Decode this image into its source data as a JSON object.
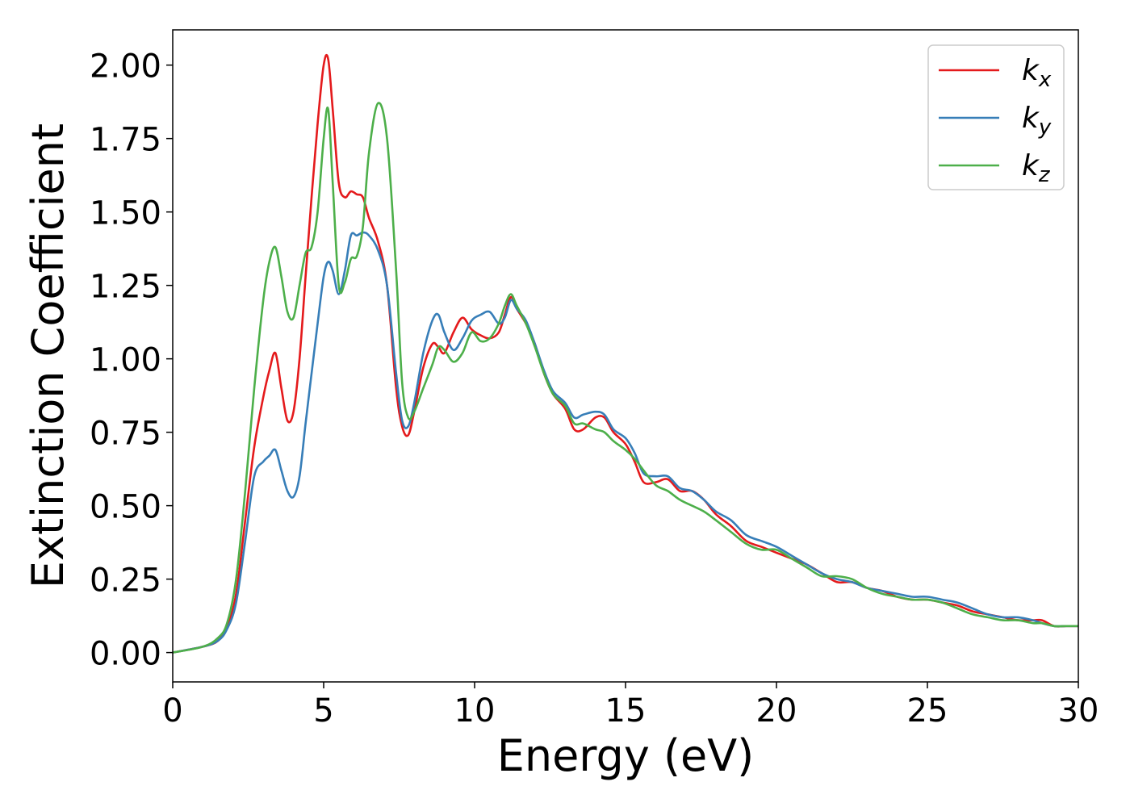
{
  "chart_data": {
    "type": "line",
    "title": "",
    "xlabel": "Energy (eV)",
    "ylabel": "Extinction Coefficient",
    "xlim": [
      0,
      30
    ],
    "ylim": [
      -0.1,
      2.12
    ],
    "xticks": [
      0,
      5,
      10,
      15,
      20,
      25,
      30
    ],
    "xtick_labels": [
      "0",
      "5",
      "10",
      "15",
      "20",
      "25",
      "30"
    ],
    "yticks": [
      0.0,
      0.25,
      0.5,
      0.75,
      1.0,
      1.25,
      1.5,
      1.75,
      2.0
    ],
    "ytick_labels": [
      "0.00",
      "0.25",
      "0.50",
      "0.75",
      "1.00",
      "1.25",
      "1.50",
      "1.75",
      "2.00"
    ],
    "grid": false,
    "legend_position": "top-right",
    "series": [
      {
        "name": "k_x",
        "legend_base": "k",
        "legend_sub": "x",
        "color": "#e41a1c",
        "x": [
          0,
          1,
          1.5,
          1.8,
          2.1,
          2.4,
          2.7,
          3.0,
          3.2,
          3.4,
          3.6,
          3.8,
          4.0,
          4.2,
          4.4,
          4.6,
          4.8,
          5.0,
          5.15,
          5.3,
          5.5,
          5.7,
          5.9,
          6.1,
          6.3,
          6.5,
          6.8,
          7.1,
          7.4,
          7.6,
          7.8,
          8.0,
          8.3,
          8.6,
          8.8,
          9.0,
          9.3,
          9.6,
          9.9,
          10.2,
          10.5,
          10.8,
          11.0,
          11.2,
          11.4,
          11.7,
          12.0,
          12.3,
          12.6,
          13.0,
          13.3,
          13.6,
          14.0,
          14.3,
          14.6,
          15.0,
          15.3,
          15.6,
          16.0,
          16.4,
          16.8,
          17.2,
          17.6,
          18.0,
          18.5,
          19.0,
          19.5,
          20.0,
          20.5,
          21.0,
          21.5,
          22.0,
          22.5,
          23.0,
          23.5,
          24.0,
          24.5,
          25.0,
          25.5,
          26.0,
          26.5,
          27.0,
          27.5,
          28.0,
          28.5,
          28.8,
          29.2,
          29.6,
          30.0
        ],
        "y": [
          0.0,
          0.02,
          0.04,
          0.09,
          0.2,
          0.45,
          0.7,
          0.87,
          0.96,
          1.02,
          0.9,
          0.79,
          0.82,
          1.0,
          1.28,
          1.55,
          1.8,
          2.0,
          2.02,
          1.85,
          1.6,
          1.55,
          1.57,
          1.56,
          1.55,
          1.48,
          1.4,
          1.25,
          0.9,
          0.77,
          0.74,
          0.82,
          0.97,
          1.05,
          1.04,
          1.02,
          1.09,
          1.14,
          1.1,
          1.08,
          1.07,
          1.09,
          1.15,
          1.21,
          1.17,
          1.12,
          1.05,
          0.95,
          0.88,
          0.83,
          0.76,
          0.76,
          0.8,
          0.8,
          0.75,
          0.71,
          0.65,
          0.58,
          0.58,
          0.59,
          0.55,
          0.55,
          0.52,
          0.47,
          0.43,
          0.38,
          0.36,
          0.34,
          0.32,
          0.3,
          0.27,
          0.24,
          0.24,
          0.22,
          0.21,
          0.19,
          0.18,
          0.18,
          0.17,
          0.16,
          0.14,
          0.13,
          0.12,
          0.11,
          0.11,
          0.11,
          0.09,
          0.09,
          0.09
        ]
      },
      {
        "name": "k_y",
        "legend_base": "k",
        "legend_sub": "y",
        "color": "#377eb8",
        "x": [
          0,
          1,
          1.5,
          1.8,
          2.1,
          2.4,
          2.7,
          3.0,
          3.2,
          3.4,
          3.6,
          3.8,
          4.0,
          4.2,
          4.4,
          4.6,
          4.8,
          5.0,
          5.15,
          5.3,
          5.5,
          5.7,
          5.9,
          6.1,
          6.3,
          6.5,
          6.8,
          7.1,
          7.4,
          7.6,
          7.8,
          8.0,
          8.3,
          8.6,
          8.8,
          9.0,
          9.3,
          9.6,
          9.9,
          10.2,
          10.5,
          10.8,
          11.0,
          11.2,
          11.4,
          11.7,
          12.0,
          12.3,
          12.6,
          13.0,
          13.3,
          13.6,
          14.0,
          14.3,
          14.6,
          15.0,
          15.3,
          15.6,
          16.0,
          16.4,
          16.8,
          17.2,
          17.6,
          18.0,
          18.5,
          19.0,
          19.5,
          20.0,
          20.5,
          21.0,
          21.5,
          22.0,
          22.5,
          23.0,
          23.5,
          24.0,
          24.5,
          25.0,
          25.5,
          26.0,
          26.5,
          27.0,
          27.5,
          28.0,
          28.5,
          28.8,
          29.2,
          29.6,
          30.0
        ],
        "y": [
          0.0,
          0.02,
          0.04,
          0.08,
          0.17,
          0.38,
          0.6,
          0.65,
          0.67,
          0.69,
          0.62,
          0.55,
          0.53,
          0.6,
          0.78,
          0.95,
          1.12,
          1.28,
          1.33,
          1.3,
          1.22,
          1.3,
          1.42,
          1.42,
          1.43,
          1.42,
          1.37,
          1.25,
          0.95,
          0.79,
          0.77,
          0.85,
          1.02,
          1.13,
          1.15,
          1.09,
          1.03,
          1.07,
          1.13,
          1.15,
          1.16,
          1.12,
          1.14,
          1.2,
          1.17,
          1.13,
          1.05,
          0.96,
          0.89,
          0.85,
          0.8,
          0.81,
          0.82,
          0.81,
          0.76,
          0.73,
          0.68,
          0.61,
          0.6,
          0.6,
          0.56,
          0.55,
          0.52,
          0.48,
          0.45,
          0.4,
          0.38,
          0.36,
          0.33,
          0.3,
          0.27,
          0.25,
          0.24,
          0.22,
          0.21,
          0.2,
          0.19,
          0.19,
          0.18,
          0.17,
          0.15,
          0.13,
          0.12,
          0.12,
          0.11,
          0.1,
          0.09,
          0.09,
          0.09
        ]
      },
      {
        "name": "k_z",
        "legend_base": "k",
        "legend_sub": "z",
        "color": "#4daf4a",
        "x": [
          0,
          1,
          1.5,
          1.8,
          2.1,
          2.4,
          2.7,
          3.0,
          3.2,
          3.4,
          3.6,
          3.8,
          4.0,
          4.2,
          4.4,
          4.6,
          4.8,
          5.0,
          5.15,
          5.3,
          5.5,
          5.7,
          5.9,
          6.1,
          6.3,
          6.5,
          6.8,
          7.1,
          7.4,
          7.6,
          7.8,
          8.0,
          8.3,
          8.6,
          8.8,
          9.0,
          9.3,
          9.6,
          9.9,
          10.2,
          10.5,
          10.8,
          11.0,
          11.2,
          11.4,
          11.7,
          12.0,
          12.3,
          12.6,
          13.0,
          13.3,
          13.6,
          14.0,
          14.3,
          14.6,
          15.0,
          15.3,
          15.6,
          16.0,
          16.4,
          16.8,
          17.2,
          17.6,
          18.0,
          18.5,
          19.0,
          19.5,
          20.0,
          20.5,
          21.0,
          21.5,
          22.0,
          22.5,
          23.0,
          23.5,
          24.0,
          24.5,
          25.0,
          25.5,
          26.0,
          26.5,
          27.0,
          27.5,
          28.0,
          28.5,
          28.8,
          29.2,
          29.6,
          30.0
        ],
        "y": [
          0.0,
          0.02,
          0.05,
          0.1,
          0.25,
          0.55,
          0.9,
          1.2,
          1.33,
          1.38,
          1.28,
          1.16,
          1.14,
          1.25,
          1.36,
          1.38,
          1.5,
          1.75,
          1.85,
          1.6,
          1.25,
          1.26,
          1.34,
          1.35,
          1.45,
          1.7,
          1.87,
          1.75,
          1.3,
          0.92,
          0.8,
          0.82,
          0.9,
          0.98,
          1.04,
          1.03,
          0.99,
          1.02,
          1.09,
          1.06,
          1.07,
          1.12,
          1.18,
          1.22,
          1.18,
          1.12,
          1.04,
          0.95,
          0.88,
          0.84,
          0.78,
          0.78,
          0.76,
          0.75,
          0.72,
          0.69,
          0.66,
          0.62,
          0.57,
          0.55,
          0.52,
          0.5,
          0.48,
          0.45,
          0.41,
          0.37,
          0.35,
          0.35,
          0.32,
          0.29,
          0.26,
          0.26,
          0.25,
          0.22,
          0.2,
          0.19,
          0.18,
          0.18,
          0.17,
          0.15,
          0.13,
          0.12,
          0.11,
          0.11,
          0.1,
          0.1,
          0.09,
          0.09,
          0.09
        ]
      }
    ]
  }
}
